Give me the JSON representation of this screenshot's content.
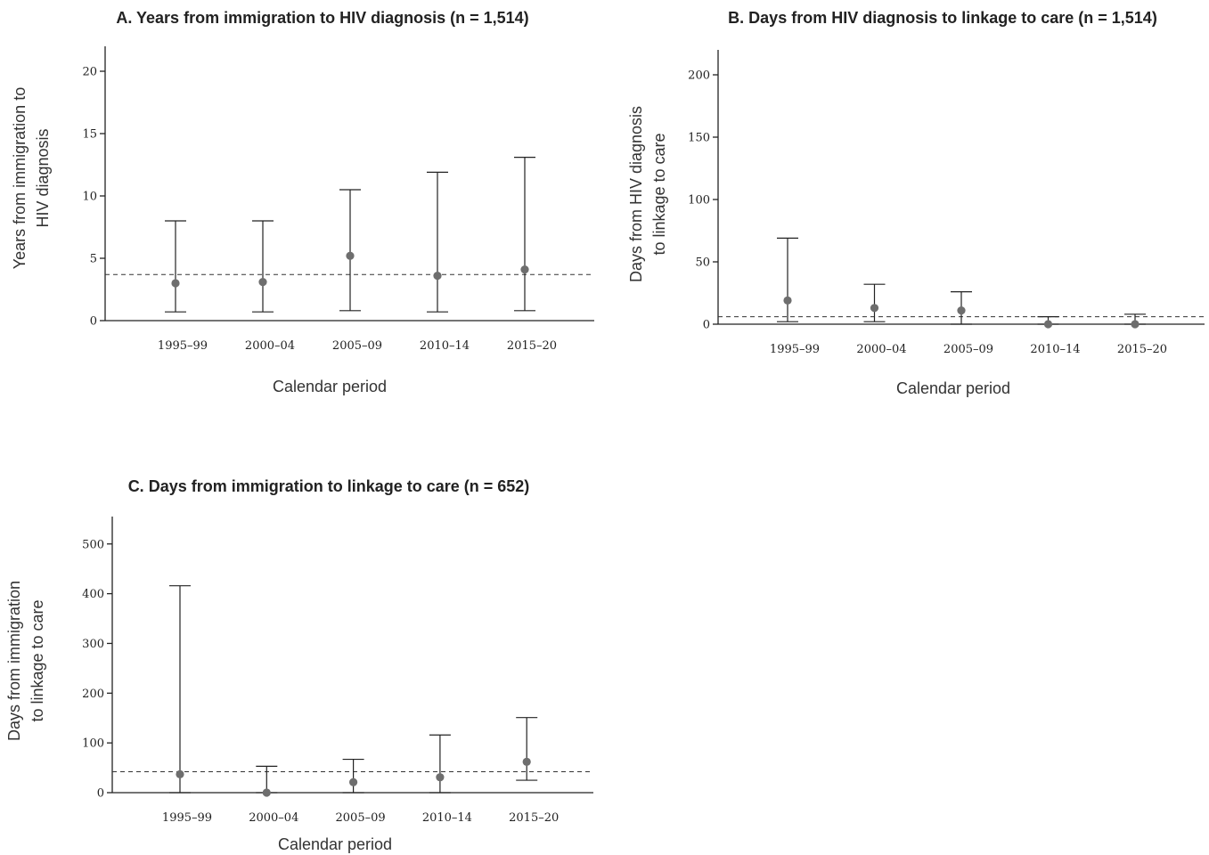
{
  "chart_data": [
    {
      "id": "A",
      "type": "scatter",
      "title": "A. Years from immigration to HIV diagnosis (n = 1,514)",
      "ylabel_lines": [
        "Years from immigration to",
        "HIV diagnosis"
      ],
      "xlabel": "Calendar period",
      "categories": [
        "1995–99",
        "2000–04",
        "2005–09",
        "2010–14",
        "2015–20"
      ],
      "values": [
        3.0,
        3.1,
        5.2,
        3.6,
        4.1
      ],
      "lower": [
        0.7,
        0.7,
        0.8,
        0.7,
        0.8
      ],
      "upper": [
        8.0,
        8.0,
        10.5,
        11.9,
        13.1
      ],
      "reference_line": 3.7,
      "ylim": [
        0,
        22
      ],
      "yticks": [
        0,
        5,
        10,
        15,
        20
      ]
    },
    {
      "id": "B",
      "type": "scatter",
      "title": "B. Days from HIV diagnosis to linkage to care (n = 1,514)",
      "ylabel_lines": [
        "Days from HIV diagnosis",
        "to linkage to care"
      ],
      "xlabel": "Calendar period",
      "categories": [
        "1995–99",
        "2000–04",
        "2005–09",
        "2010–14",
        "2015–20"
      ],
      "values": [
        19,
        13,
        11,
        0,
        0
      ],
      "lower": [
        2,
        2,
        0,
        0,
        0
      ],
      "upper": [
        69,
        32,
        26,
        6,
        8
      ],
      "reference_line": 6,
      "ylim": [
        0,
        220
      ],
      "yticks": [
        0,
        50,
        100,
        150,
        200
      ]
    },
    {
      "id": "C",
      "type": "scatter",
      "title": "C. Days from immigration to linkage to care (n = 652)",
      "ylabel_lines": [
        "Days from immigration",
        "to linkage to care"
      ],
      "xlabel": "Calendar period",
      "categories": [
        "1995–99",
        "2000–04",
        "2005–09",
        "2010–14",
        "2015–20"
      ],
      "values": [
        37,
        0,
        21,
        31,
        62
      ],
      "lower": [
        0,
        0,
        0,
        0,
        25
      ],
      "upper": [
        416,
        53,
        67,
        116,
        151
      ],
      "reference_line": 42,
      "ylim": [
        0,
        555
      ],
      "yticks": [
        0,
        100,
        200,
        300,
        400,
        500
      ]
    }
  ]
}
